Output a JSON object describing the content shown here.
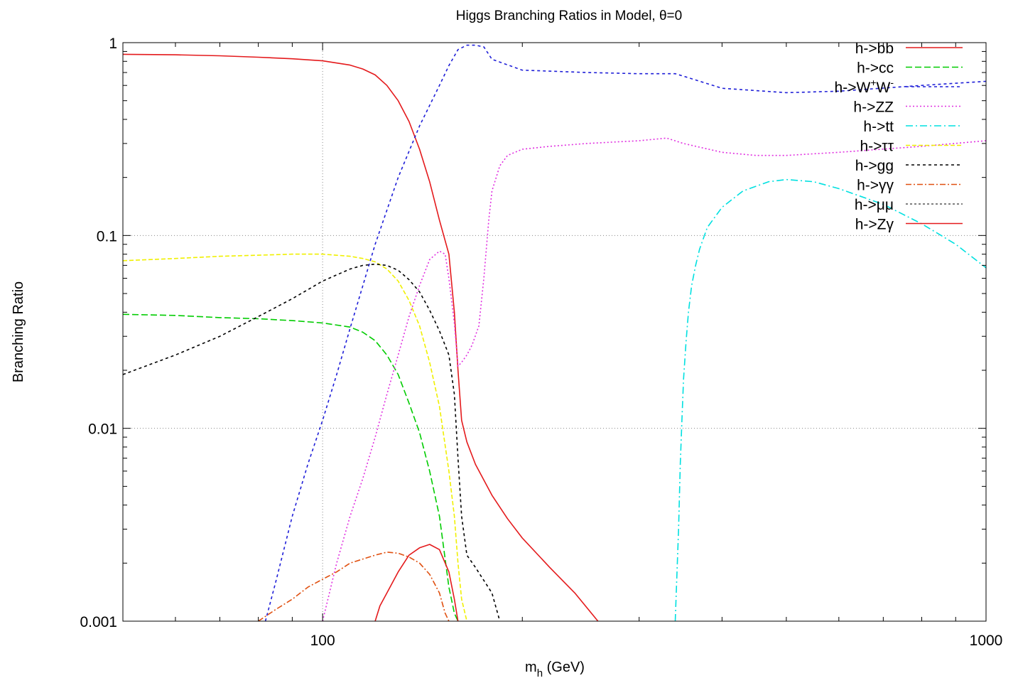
{
  "chart_data": {
    "type": "line",
    "title": "Higgs Branching Ratios in Model, θ=0",
    "xlabel_main": "m",
    "xlabel_sub": "h",
    "xlabel_rest": " (GeV)",
    "ylabel": "Branching Ratio",
    "xscale": "log",
    "yscale": "log",
    "xlim": [
      50,
      1000
    ],
    "ylim": [
      0.001,
      1
    ],
    "xticks": [
      {
        "value": 100,
        "label": "100"
      },
      {
        "value": 1000,
        "label": "1000"
      }
    ],
    "yticks": [
      {
        "value": 0.001,
        "label": "0.001"
      },
      {
        "value": 0.01,
        "label": "0.01"
      },
      {
        "value": 0.1,
        "label": "0.1"
      },
      {
        "value": 1,
        "label": "1"
      }
    ],
    "grid": true,
    "legend_position": "top-right",
    "series": [
      {
        "name": "h->bb",
        "color": "#e41a1c",
        "dash": "",
        "x": [
          50,
          60,
          70,
          80,
          90,
          100,
          110,
          115,
          120,
          125,
          130,
          135,
          140,
          145,
          150,
          155,
          158,
          160,
          162,
          165,
          170,
          180,
          190,
          200,
          220,
          240,
          260
        ],
        "y": [
          0.87,
          0.865,
          0.855,
          0.84,
          0.825,
          0.805,
          0.765,
          0.73,
          0.68,
          0.6,
          0.5,
          0.39,
          0.28,
          0.19,
          0.12,
          0.08,
          0.04,
          0.02,
          0.011,
          0.0085,
          0.0065,
          0.0045,
          0.0034,
          0.0027,
          0.0019,
          0.0014,
          0.001
        ]
      },
      {
        "name": "h->cc",
        "color": "#00cc00",
        "dash": "9 4",
        "x": [
          50,
          60,
          70,
          80,
          90,
          100,
          110,
          115,
          120,
          125,
          130,
          135,
          140,
          145,
          150,
          155,
          158,
          160
        ],
        "y": [
          0.039,
          0.0385,
          0.0375,
          0.037,
          0.0362,
          0.0352,
          0.0335,
          0.0315,
          0.0285,
          0.024,
          0.019,
          0.0135,
          0.0095,
          0.006,
          0.0035,
          0.0015,
          0.0011,
          0.001
        ]
      },
      {
        "name": "h->W+W-",
        "color": "#1f1fd8",
        "dash": "4 4",
        "sup1": "+",
        "sup2": "-",
        "label_main": "h->W",
        "label_mid": "W",
        "x": [
          82,
          85,
          90,
          95,
          100,
          105,
          110,
          115,
          120,
          130,
          140,
          150,
          155,
          160,
          165,
          170,
          175,
          180,
          200,
          250,
          300,
          340,
          350,
          400,
          500,
          600,
          800,
          1000
        ],
        "y": [
          0.001,
          0.0016,
          0.0035,
          0.0065,
          0.011,
          0.019,
          0.033,
          0.055,
          0.09,
          0.2,
          0.37,
          0.6,
          0.76,
          0.92,
          0.97,
          0.97,
          0.95,
          0.82,
          0.72,
          0.7,
          0.69,
          0.69,
          0.67,
          0.58,
          0.55,
          0.56,
          0.6,
          0.63
        ]
      },
      {
        "name": "h->ZZ",
        "color": "#e030e0",
        "dash": "2 3",
        "x": [
          100,
          105,
          110,
          115,
          120,
          125,
          130,
          135,
          140,
          145,
          150,
          153,
          155,
          158,
          160,
          162,
          165,
          168,
          172,
          175,
          178,
          180,
          185,
          190,
          200,
          220,
          250,
          300,
          330,
          350,
          400,
          450,
          500,
          600,
          800,
          1000
        ],
        "y": [
          0.001,
          0.002,
          0.0035,
          0.0055,
          0.009,
          0.015,
          0.024,
          0.038,
          0.055,
          0.075,
          0.083,
          0.08,
          0.06,
          0.035,
          0.021,
          0.022,
          0.024,
          0.027,
          0.034,
          0.06,
          0.12,
          0.17,
          0.23,
          0.26,
          0.28,
          0.29,
          0.3,
          0.31,
          0.32,
          0.3,
          0.27,
          0.26,
          0.26,
          0.27,
          0.29,
          0.31
        ]
      },
      {
        "name": "h->tt",
        "color": "#00e0e0",
        "dash": "10 4 2 4",
        "x": [
          340,
          344,
          346,
          348,
          350,
          353,
          356,
          360,
          365,
          370,
          380,
          400,
          430,
          470,
          500,
          550,
          600,
          700,
          800,
          900,
          1000
        ],
        "y": [
          0.001,
          0.003,
          0.0065,
          0.011,
          0.018,
          0.028,
          0.04,
          0.055,
          0.07,
          0.085,
          0.11,
          0.14,
          0.17,
          0.19,
          0.195,
          0.19,
          0.175,
          0.145,
          0.115,
          0.09,
          0.068
        ]
      },
      {
        "name": "h->ττ",
        "color": "#f0f000",
        "dash": "6 3",
        "x": [
          50,
          60,
          70,
          80,
          90,
          100,
          110,
          115,
          120,
          125,
          130,
          135,
          140,
          145,
          150,
          155,
          158,
          160,
          162,
          165
        ],
        "y": [
          0.074,
          0.076,
          0.078,
          0.079,
          0.08,
          0.08,
          0.078,
          0.076,
          0.073,
          0.067,
          0.058,
          0.046,
          0.034,
          0.022,
          0.013,
          0.006,
          0.0035,
          0.002,
          0.0013,
          0.001
        ]
      },
      {
        "name": "h->gg",
        "color": "#000000",
        "dash": "4 4",
        "x": [
          50,
          60,
          70,
          80,
          90,
          100,
          110,
          115,
          120,
          125,
          130,
          135,
          140,
          145,
          150,
          155,
          158,
          160,
          162,
          165,
          170,
          180,
          185
        ],
        "y": [
          0.019,
          0.024,
          0.03,
          0.038,
          0.047,
          0.058,
          0.067,
          0.07,
          0.071,
          0.07,
          0.066,
          0.059,
          0.051,
          0.041,
          0.032,
          0.024,
          0.015,
          0.007,
          0.0035,
          0.0022,
          0.0019,
          0.0014,
          0.001
        ]
      },
      {
        "name": "h->γγ",
        "color": "#e05010",
        "dash": "8 3 2 3",
        "x": [
          80,
          85,
          90,
          95,
          100,
          105,
          110,
          115,
          120,
          125,
          130,
          135,
          140,
          145,
          150,
          153,
          155
        ],
        "y": [
          0.001,
          0.00115,
          0.0013,
          0.0015,
          0.00165,
          0.0018,
          0.002,
          0.0021,
          0.0022,
          0.00228,
          0.00225,
          0.00215,
          0.002,
          0.00175,
          0.0014,
          0.0011,
          0.001
        ]
      },
      {
        "name": "h->μμ",
        "color": "#555555",
        "dash": "3 3",
        "x": [],
        "y": []
      },
      {
        "name": "h->Zγ",
        "color": "#e41a1c",
        "dash": "",
        "x": [
          120,
          122,
          125,
          130,
          135,
          140,
          145,
          150,
          155,
          158,
          160
        ],
        "y": [
          0.001,
          0.0012,
          0.0014,
          0.0018,
          0.0022,
          0.0024,
          0.0025,
          0.00235,
          0.0018,
          0.0013,
          0.001
        ]
      }
    ]
  }
}
